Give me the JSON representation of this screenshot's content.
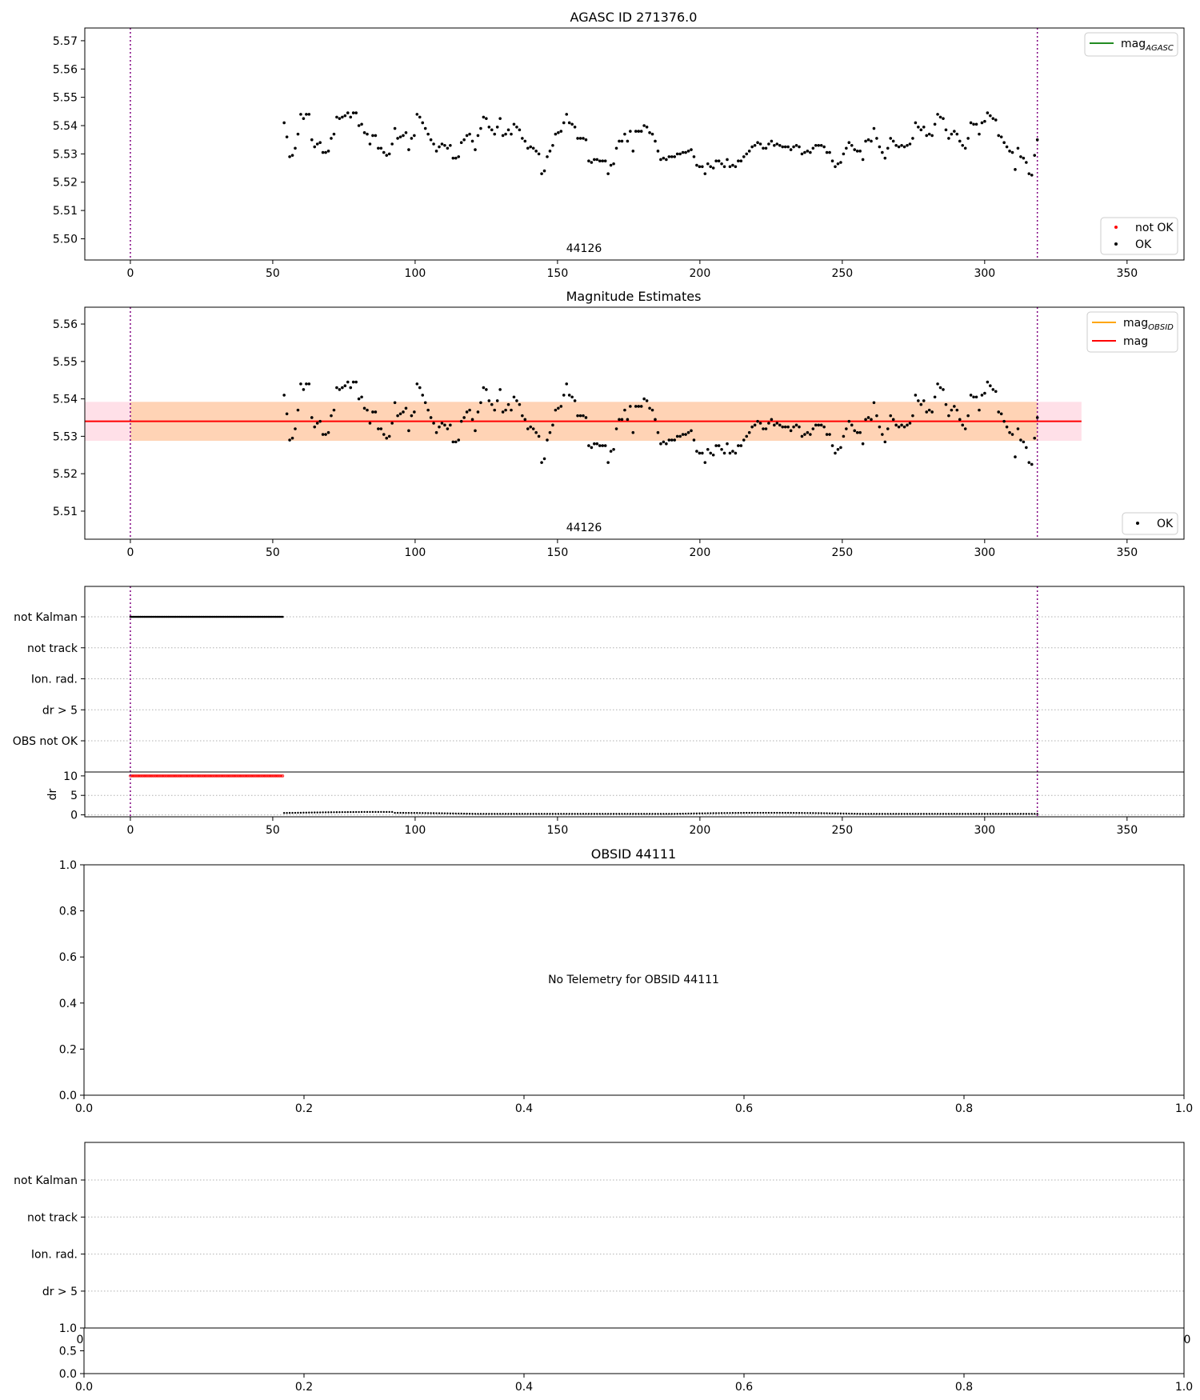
{
  "chart_data": [
    {
      "type": "scatter",
      "title": "AGASC ID 271376.0",
      "xlabel": "",
      "ylabel": "",
      "xlim": [
        -16,
        370
      ],
      "ylim": [
        5.4925,
        5.5745
      ],
      "x_ticks": [
        "0",
        "50",
        "100",
        "150",
        "200",
        "250",
        "300",
        "350"
      ],
      "y_ticks": [
        "5.50",
        "5.51",
        "5.52",
        "5.53",
        "5.54",
        "5.55",
        "5.56",
        "5.57"
      ],
      "obsid_label": "44126",
      "vlines_x": [
        0,
        318.5
      ],
      "legend_upper": [
        {
          "name": "mag",
          "subscript": "AGASC",
          "color": "#228B22"
        }
      ],
      "legend_lower": [
        {
          "name": "not OK",
          "color": "#ff0000"
        },
        {
          "name": "OK",
          "color": "#000000"
        }
      ],
      "series": [
        {
          "name": "OK",
          "x_start": 54,
          "x_end": 318.5,
          "count": 265
        }
      ],
      "grid": false
    },
    {
      "type": "scatter",
      "title": "Magnitude Estimates",
      "xlabel": "",
      "ylabel": "",
      "xlim": [
        -16,
        370
      ],
      "ylim": [
        5.5025,
        5.5645
      ],
      "x_ticks": [
        "0",
        "50",
        "100",
        "150",
        "200",
        "250",
        "300",
        "350"
      ],
      "y_ticks": [
        "5.51",
        "5.52",
        "5.53",
        "5.54",
        "5.55",
        "5.56"
      ],
      "obsid_label": "44126",
      "vlines_x": [
        0,
        318.5
      ],
      "mean_mag": 5.534,
      "band_obsid": [
        5.5288,
        5.5392
      ],
      "band_mag": [
        5.5288,
        5.5392
      ],
      "band_x_end": 334,
      "legend_upper": [
        {
          "name": "mag",
          "subscript": "OBSID",
          "color": "#FFA500"
        },
        {
          "name": "mag",
          "subscript": "",
          "color": "#ff0000"
        }
      ],
      "legend_lower": [
        {
          "name": "OK",
          "color": "#000000"
        }
      ],
      "grid": false
    },
    {
      "type": "scatter",
      "title": "",
      "xlim": [
        -16,
        370
      ],
      "x_ticks": [
        "0",
        "50",
        "100",
        "150",
        "200",
        "250",
        "300",
        "350"
      ],
      "flag_categories": [
        "not Kalman",
        "not track",
        "Ion. rad.",
        "dr > 5",
        "OBS not OK"
      ],
      "flags_set": {
        "not Kalman": [
          0,
          53.5
        ]
      },
      "dr_ylabel": "dr",
      "dr_ticks": [
        "0",
        "5",
        "10"
      ],
      "dr_ylim": [
        -0.5,
        11
      ],
      "dr_clipped_value": 10,
      "dr_clipped_range": [
        0,
        53.5
      ],
      "vlines_x": [
        0,
        318.5
      ]
    },
    {
      "type": "scatter",
      "title": "OBSID 44111",
      "xlim": [
        0,
        1
      ],
      "ylim": [
        0,
        1
      ],
      "x_ticks": [
        "0.0",
        "0.2",
        "0.4",
        "0.6",
        "0.8",
        "1.0"
      ],
      "y_ticks": [
        "0.0",
        "0.2",
        "0.4",
        "0.6",
        "0.8",
        "1.0"
      ],
      "annotation": "No Telemetry for OBSID 44111"
    },
    {
      "type": "scatter",
      "title": "",
      "flag_categories": [
        "not Kalman",
        "not track",
        "Ion. rad.",
        "dr > 5"
      ],
      "x_ticks_partial": [
        "0",
        "0"
      ],
      "dr_ticks": [
        "0.0",
        "0.5",
        "1.0"
      ],
      "x_ticks": [
        "0.0",
        "0.2",
        "0.4",
        "0.6",
        "0.8",
        "1.0"
      ]
    }
  ]
}
